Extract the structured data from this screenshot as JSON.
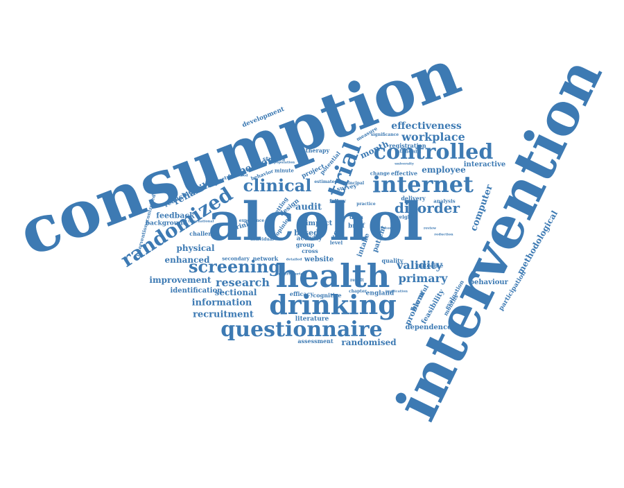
{
  "colors": {
    "primary": "#3d7ab3",
    "background": "#ffffff"
  },
  "words": [
    {
      "text": "consumption"
    },
    {
      "text": "intervention"
    },
    {
      "text": "alcohol"
    },
    {
      "text": "health"
    },
    {
      "text": "drinking"
    },
    {
      "text": "questionnaire"
    },
    {
      "text": "internet"
    },
    {
      "text": "controlled"
    },
    {
      "text": "randomized"
    },
    {
      "text": "screening"
    },
    {
      "text": "clinical"
    },
    {
      "text": "disorder"
    },
    {
      "text": "trial"
    },
    {
      "text": "effectiveness"
    },
    {
      "text": "workplace"
    },
    {
      "text": "employee"
    },
    {
      "text": "research"
    },
    {
      "text": "validity"
    },
    {
      "text": "primary"
    },
    {
      "text": "information"
    },
    {
      "text": "recruitment"
    },
    {
      "text": "sectional"
    },
    {
      "text": "identification"
    },
    {
      "text": "improvement"
    },
    {
      "text": "enhanced"
    },
    {
      "text": "physical"
    },
    {
      "text": "feedback"
    },
    {
      "text": "background"
    },
    {
      "text": "reliability"
    },
    {
      "text": "reducing"
    },
    {
      "text": "person"
    },
    {
      "text": "audit"
    },
    {
      "text": "website"
    },
    {
      "text": "based"
    },
    {
      "text": "impact"
    },
    {
      "text": "project"
    },
    {
      "text": "design"
    },
    {
      "text": "month"
    },
    {
      "text": "interactive"
    },
    {
      "text": "computer"
    },
    {
      "text": "methodological"
    },
    {
      "text": "behaviour"
    },
    {
      "text": "participation"
    },
    {
      "text": "randomised"
    },
    {
      "text": "dependence"
    },
    {
      "text": "literature"
    },
    {
      "text": "assessment"
    },
    {
      "text": "england"
    },
    {
      "text": "problem"
    },
    {
      "text": "feasibility"
    },
    {
      "text": "development"
    },
    {
      "text": "challenge"
    },
    {
      "text": "drinker"
    },
    {
      "text": "network"
    },
    {
      "text": "quality"
    },
    {
      "text": "outcome"
    },
    {
      "text": "delivery"
    },
    {
      "text": "registration"
    },
    {
      "text": "standard"
    },
    {
      "text": "efficacy"
    },
    {
      "text": "cognitive"
    },
    {
      "text": "activity"
    },
    {
      "text": "group"
    },
    {
      "text": "setting"
    },
    {
      "text": "opinion"
    },
    {
      "text": "studies"
    },
    {
      "text": "therapy"
    },
    {
      "text": "potential"
    },
    {
      "text": "minute"
    },
    {
      "text": "behavior"
    },
    {
      "text": "geometric"
    },
    {
      "text": "secondary"
    },
    {
      "text": "survey"
    },
    {
      "text": "follow"
    },
    {
      "text": "brief"
    },
    {
      "text": "data"
    },
    {
      "text": "cross"
    },
    {
      "text": "line"
    },
    {
      "text": "level"
    },
    {
      "text": "intake"
    },
    {
      "text": "care"
    },
    {
      "text": "patient"
    },
    {
      "text": "harmful"
    },
    {
      "text": "evaluation"
    },
    {
      "text": "months"
    },
    {
      "text": "measure"
    },
    {
      "text": "significance"
    },
    {
      "text": "change"
    },
    {
      "text": "effective"
    },
    {
      "text": "practice"
    },
    {
      "text": "analysis"
    },
    {
      "text": "weight"
    },
    {
      "text": "estimated"
    },
    {
      "text": "interventionscontrolled"
    },
    {
      "text": "chapter"
    },
    {
      "text": "principal"
    },
    {
      "text": "experience"
    },
    {
      "text": "detailed"
    },
    {
      "text": "international"
    },
    {
      "text": "underreported"
    },
    {
      "text": "individual"
    },
    {
      "text": "result"
    },
    {
      "text": "implication"
    },
    {
      "text": "reduction"
    },
    {
      "text": "population"
    },
    {
      "text": "registered"
    },
    {
      "text": "university"
    },
    {
      "text": "theory"
    },
    {
      "text": "review"
    }
  ]
}
